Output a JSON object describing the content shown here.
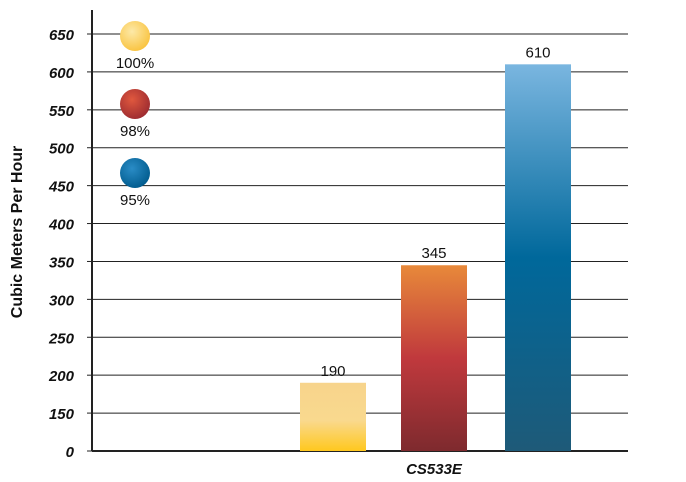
{
  "chart_data": {
    "type": "bar",
    "ylabel": "Cubic Meters Per Hour",
    "xlabel": "",
    "category": "CS533E",
    "yticks": [
      0,
      150,
      200,
      250,
      300,
      350,
      400,
      450,
      500,
      550,
      600,
      650
    ],
    "grid": true,
    "legend_position": "top-left",
    "series": [
      {
        "name": "100%",
        "value": 190,
        "label": "190",
        "color_top": "#f7d48c",
        "color_bottom": "#ffc81e"
      },
      {
        "name": "98%",
        "value": 345,
        "label": "345",
        "color_top": "#e8893a",
        "color_bottom": "#8a2630"
      },
      {
        "name": "95%",
        "value": 610,
        "label": "610",
        "color_top": "#7ab6e0",
        "color_bottom": "#00689b"
      }
    ]
  }
}
